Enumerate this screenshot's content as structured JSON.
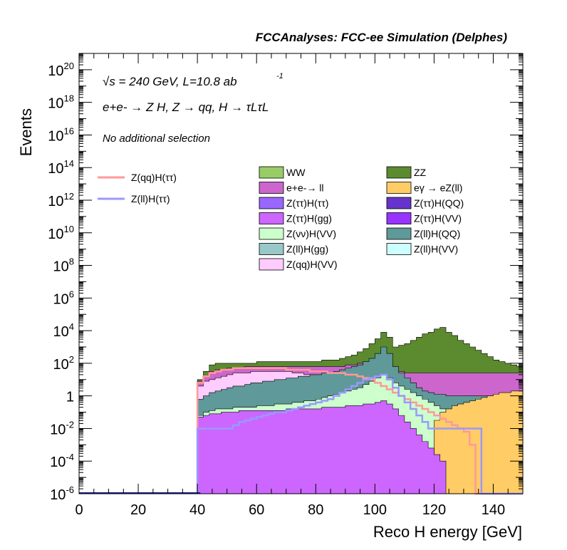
{
  "header": {
    "title": "FCCAnalyses: FCC-ee Simulation (Delphes)"
  },
  "annotations": {
    "sqrt_s": "√s = 240 GeV, L=10.8 ab",
    "lumi_exp": "-1",
    "process_main": "e+e- → Z H, Z → qq, H → τLτL",
    "selection": "No additional selection"
  },
  "colors": {
    "WW": "#99cc66",
    "ZZ": "#5c8a2e",
    "ee_ll": "#cc66cc",
    "egamma_eZll": "#ffcc66",
    "Ztautau_Htautau": "#9966ff",
    "Ztautau_HQQ": "#6633cc",
    "Ztautau_Hgg": "#cc66ff",
    "Ztautau_HVV": "#9933ff",
    "Znunu_HVV": "#ccffcc",
    "Zll_HQQ": "#5f9999",
    "Zll_Hgg": "#99c8c8",
    "Zll_HVV": "#ccffff",
    "Zqq_HVV": "#ffccff",
    "sig_qq": "#ff9999",
    "sig_ll": "#9999ff"
  },
  "chart_data": {
    "type": "area",
    "xlabel": "Reco H energy [GeV]",
    "ylabel": "Events",
    "xlim": [
      0,
      150
    ],
    "ylim": [
      1e-06,
      1e+21
    ],
    "y_log": true,
    "x_ticks": [
      "0",
      "20",
      "40",
      "60",
      "80",
      "100",
      "120",
      "140"
    ],
    "y_ticks": [
      {
        "base": "10",
        "exp": "-6",
        "plain": ""
      },
      {
        "base": "10",
        "exp": "-4",
        "plain": ""
      },
      {
        "base": "10",
        "exp": "-2",
        "plain": ""
      },
      {
        "base": "",
        "exp": "",
        "plain": "1"
      },
      {
        "base": "10",
        "exp": "2",
        "plain": ""
      },
      {
        "base": "10",
        "exp": "4",
        "plain": ""
      },
      {
        "base": "10",
        "exp": "6",
        "plain": ""
      },
      {
        "base": "10",
        "exp": "8",
        "plain": ""
      },
      {
        "base": "10",
        "exp": "10",
        "plain": ""
      },
      {
        "base": "10",
        "exp": "12",
        "plain": ""
      },
      {
        "base": "10",
        "exp": "14",
        "plain": ""
      },
      {
        "base": "10",
        "exp": "16",
        "plain": ""
      },
      {
        "base": "10",
        "exp": "18",
        "plain": ""
      },
      {
        "base": "10",
        "exp": "20",
        "plain": ""
      }
    ],
    "stack_order_bottom_to_top": [
      "Z(ττ)H(gg)",
      "Z(ττ)H(ττ)",
      "Z(ττ)H(VV)",
      "Z(ττ)H(QQ)",
      "eγ → eZ(ll)",
      "Z(νν)H(VV)",
      "Z(ll)H(VV)",
      "Z(ll)H(gg)",
      "Z(ll)H(QQ)",
      "Z(qq)H(VV)",
      "e+e-→ ll",
      "WW",
      "ZZ"
    ],
    "legend_background": [
      {
        "name": "WW",
        "color_key": "WW"
      },
      {
        "name": "ZZ",
        "color_key": "ZZ"
      },
      {
        "name": "e+e-→ ll",
        "color_key": "ee_ll"
      },
      {
        "name": "eγ → eZ(ll)",
        "color_key": "egamma_eZll"
      },
      {
        "name": "Z(ττ)H(ττ)",
        "color_key": "Ztautau_Htautau"
      },
      {
        "name": "Z(ττ)H(QQ)",
        "color_key": "Ztautau_HQQ"
      },
      {
        "name": "Z(ττ)H(gg)",
        "color_key": "Ztautau_Hgg"
      },
      {
        "name": "Z(ττ)H(VV)",
        "color_key": "Ztautau_HVV"
      },
      {
        "name": "Z(νν)H(VV)",
        "color_key": "Znunu_HVV"
      },
      {
        "name": "Z(ll)H(QQ)",
        "color_key": "Zll_HQQ"
      },
      {
        "name": "Z(ll)H(gg)",
        "color_key": "Zll_Hgg"
      },
      {
        "name": "Z(ll)H(VV)",
        "color_key": "Zll_HVV"
      },
      {
        "name": "Z(qq)H(VV)",
        "color_key": "Zqq_HVV"
      }
    ],
    "legend_signal": [
      {
        "name": "Z(qq)H(ττ)",
        "color_key": "sig_qq"
      },
      {
        "name": "Z(ll)H(ττ)",
        "color_key": "sig_ll"
      }
    ],
    "stack_envelope": {
      "description": "approximate cumulative stack heights (log10 of events) per 2 GeV bin from 40 to 150 GeV",
      "x_start": 40,
      "bin_width": 2,
      "ZZ_top": [
        1.0,
        1.5,
        1.9,
        2.0,
        2.0,
        2.0,
        2.0,
        2.0,
        2.0,
        2.0,
        2.1,
        2.1,
        2.1,
        2.1,
        2.1,
        2.1,
        2.1,
        2.1,
        2.1,
        2.1,
        2.1,
        2.2,
        2.2,
        2.2,
        2.3,
        2.4,
        2.5,
        2.7,
        2.9,
        3.2,
        3.5,
        3.9,
        3.6,
        3.0,
        3.1,
        3.2,
        3.4,
        3.6,
        3.8,
        3.9,
        4.1,
        4.2,
        3.9,
        3.7,
        3.4,
        3.2,
        3.0,
        2.8,
        2.6,
        2.4,
        2.2,
        2.1,
        2.0,
        1.9,
        1.8
      ],
      "ee_ll_top": [
        0.9,
        1.2,
        1.5,
        1.6,
        1.6,
        1.7,
        1.7,
        1.7,
        1.8,
        1.8,
        1.8,
        1.8,
        1.8,
        1.8,
        1.8,
        1.8,
        1.8,
        1.8,
        1.8,
        1.8,
        1.8,
        1.8,
        1.8,
        1.8,
        1.8,
        1.9,
        1.9,
        2.0,
        2.0,
        2.0,
        2.1,
        2.2,
        1.9,
        1.6,
        1.5,
        1.4,
        1.4,
        1.4,
        1.4,
        1.4,
        1.4,
        1.4,
        1.4,
        1.4,
        1.4,
        1.4,
        1.4,
        1.4,
        1.4,
        1.4,
        1.4,
        1.4,
        1.4,
        1.4,
        1.4
      ],
      "Zqq_HVV_top": [
        0.6,
        0.9,
        1.0,
        1.1,
        1.2,
        1.3,
        1.4,
        1.4,
        1.4,
        1.5,
        1.5,
        1.5,
        1.5,
        1.5,
        1.5,
        1.5,
        1.4,
        1.4,
        1.3,
        1.3,
        1.2,
        1.1,
        1.0,
        0.9,
        0.8,
        0.7,
        0.6,
        0.5,
        0.4,
        0.3,
        0.2,
        0.1,
        -0.1,
        -0.3,
        -0.5,
        -0.7,
        -0.9,
        -1.1,
        -1.3,
        -1.5,
        -1.7,
        -1.9,
        -2.1,
        -2.3,
        -2.5,
        -2.7,
        -2.9,
        -3.1,
        -3.3,
        -3.5,
        -3.7,
        -3.9,
        -4.1,
        -4.3,
        -4.5
      ],
      "Zll_top": [
        -0.2,
        0.0,
        0.2,
        0.3,
        0.4,
        0.5,
        0.6,
        0.6,
        0.7,
        0.8,
        0.8,
        0.9,
        0.9,
        1.0,
        1.0,
        1.1,
        1.1,
        1.2,
        1.2,
        1.3,
        1.3,
        1.4,
        1.4,
        1.5,
        1.6,
        1.7,
        1.8,
        1.9,
        2.1,
        2.3,
        2.6,
        3.0,
        2.6,
        1.8,
        1.4,
        1.1,
        0.8,
        0.5,
        0.3,
        0.2,
        0.1,
        0.1,
        0.0,
        0.0,
        0.0,
        0.0,
        0.0,
        0.0,
        0.0,
        0.0,
        0.0,
        0.0,
        0.0,
        0.0,
        0.0
      ],
      "Znunu_top": [
        -1.2,
        -1.0,
        -0.9,
        -0.8,
        -0.8,
        -0.8,
        -0.7,
        -0.7,
        -0.7,
        -0.7,
        -0.6,
        -0.6,
        -0.6,
        -0.5,
        -0.5,
        -0.5,
        -0.4,
        -0.4,
        -0.3,
        -0.3,
        -0.2,
        -0.1,
        0.0,
        0.1,
        0.2,
        0.3,
        0.4,
        0.5,
        0.7,
        0.9,
        1.1,
        1.3,
        1.1,
        0.8,
        0.6,
        0.4,
        0.2,
        0.0,
        -0.2,
        -0.4,
        -0.6,
        -0.8,
        -1.0,
        -1.2,
        -1.4,
        -1.6,
        -1.8,
        -2.0,
        -2.2,
        -2.4,
        -2.6,
        -2.8,
        -3.0,
        -3.2,
        -3.4
      ],
      "egamma_top": [
        -6,
        -6,
        -6,
        -6,
        -6,
        -6,
        -6,
        -6,
        -6,
        -6,
        -6,
        -6,
        -6,
        -6,
        -6,
        -6,
        -6,
        -6,
        -6,
        -6,
        -6,
        -6,
        -6,
        -6,
        -6,
        -6,
        -6,
        -6,
        -6,
        -6,
        -6,
        -6,
        -6,
        -6,
        -6,
        -6,
        -6,
        -6,
        -6,
        -6,
        -1.5,
        -1.0,
        -0.8,
        -0.6,
        -0.5,
        -0.4,
        -0.3,
        -0.2,
        -0.1,
        0.0,
        0.1,
        0.2,
        0.2,
        0.3,
        0.3
      ],
      "Ztt_top": [
        -1.3,
        -1.2,
        -1.1,
        -1.1,
        -1.0,
        -1.0,
        -1.0,
        -0.9,
        -0.9,
        -0.9,
        -0.9,
        -0.9,
        -0.9,
        -0.9,
        -0.9,
        -0.8,
        -0.8,
        -0.8,
        -0.8,
        -0.8,
        -0.8,
        -0.7,
        -0.7,
        -0.7,
        -0.7,
        -0.6,
        -0.6,
        -0.6,
        -0.5,
        -0.5,
        -0.4,
        -0.3,
        -0.5,
        -0.8,
        -1.2,
        -1.6,
        -2.0,
        -2.4,
        -2.8,
        -3.2,
        -3.6,
        -4.0,
        -6,
        -6,
        -6,
        -6,
        -6,
        -6,
        -6,
        -6,
        -6,
        -6,
        -6,
        -6,
        -6
      ]
    },
    "signal_qq": {
      "x_start": 40,
      "bin_width": 2,
      "log10_values": [
        0.8,
        1.2,
        1.4,
        1.5,
        1.6,
        1.6,
        1.7,
        1.7,
        1.7,
        1.7,
        1.7,
        1.7,
        1.7,
        1.7,
        1.7,
        1.6,
        1.6,
        1.6,
        1.6,
        1.5,
        1.5,
        1.5,
        1.4,
        1.4,
        1.4,
        1.3,
        1.3,
        1.2,
        1.1,
        1.0,
        0.8,
        0.6,
        0.4,
        0.2,
        0.0,
        -0.2,
        -0.4,
        -0.6,
        -0.8,
        -1.0,
        -1.2,
        -1.4,
        -1.6,
        -1.8,
        -2.0,
        -2.2,
        -3.0,
        -6,
        -6,
        -6,
        -6,
        -6,
        -6,
        -6,
        -6
      ]
    },
    "signal_ll": {
      "x_start": 40,
      "bin_width": 2,
      "log10_values": [
        -2.0,
        -2.0,
        -2.0,
        -2.0,
        -2.0,
        -2.0,
        -1.8,
        -1.6,
        -1.5,
        -1.4,
        -1.3,
        -1.2,
        -1.1,
        -1.0,
        -1.0,
        -0.9,
        -0.8,
        -0.7,
        -0.6,
        -0.5,
        -0.4,
        -0.3,
        -0.2,
        0.0,
        0.2,
        0.4,
        0.6,
        0.8,
        1.0,
        1.1,
        1.2,
        1.3,
        1.0,
        0.5,
        0.0,
        -0.4,
        -0.8,
        -1.2,
        -1.6,
        -2.0,
        -2.0,
        -2.0,
        -2.0,
        -2.0,
        -2.0,
        -2.0,
        -2.0,
        -2.0,
        -6,
        -6,
        -6,
        -6,
        -6,
        -6,
        -6
      ]
    }
  }
}
